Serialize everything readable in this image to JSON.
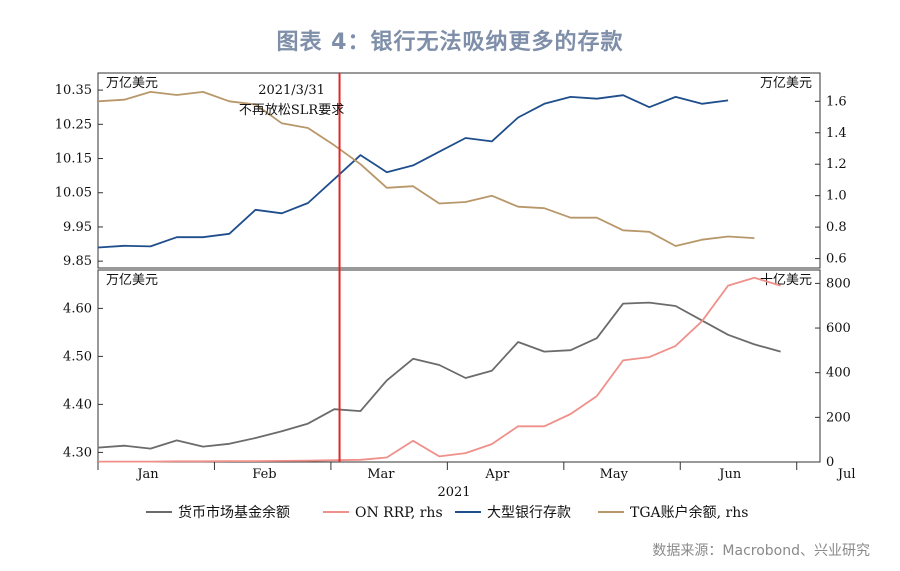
{
  "title": "图表 4：银行无法吸纳更多的存款",
  "source": "数据来源：Macrobond、兴业研究",
  "colors": {
    "mmf": "#6b6b6b",
    "onrrp": "#f0908a",
    "bank": "#1f4e8c",
    "tga": "#b8976a",
    "vline": "#e0282a",
    "axis": "#333333"
  },
  "chart_data": [
    {
      "type": "line",
      "panel": "top",
      "annotation": {
        "x": 9.2,
        "lines": [
          "2021/3/31",
          "不再放松SLR要求"
        ]
      },
      "left_unit": "万亿美元",
      "right_unit": "万亿美元",
      "ylim_left": [
        9.83,
        10.4
      ],
      "yticks_left": [
        "10.35",
        "10.25",
        "10.15",
        "10.05",
        "9.95",
        "9.85"
      ],
      "ylim_right": [
        0.54,
        1.78
      ],
      "yticks_right": [
        "1.6",
        "1.4",
        "1.2",
        "1.0",
        "0.8",
        "0.6"
      ],
      "series": [
        {
          "name": "大型银行存款",
          "axis": "left",
          "color_key": "bank",
          "x": [
            0,
            1,
            2,
            3,
            4,
            5,
            6,
            7,
            8,
            9,
            10,
            11,
            12,
            13,
            14,
            15,
            16,
            17,
            18,
            19,
            20,
            21,
            22,
            23,
            24
          ],
          "y": [
            9.89,
            9.895,
            9.893,
            9.92,
            9.92,
            9.93,
            10.0,
            9.99,
            10.02,
            10.09,
            10.16,
            10.11,
            10.13,
            10.17,
            10.21,
            10.2,
            10.27,
            10.31,
            10.33,
            10.325,
            10.335,
            10.3,
            10.33,
            10.31,
            10.32
          ]
        },
        {
          "name": "TGA账户余额，rhs",
          "axis": "right",
          "color_key": "tga",
          "x": [
            0,
            1,
            2,
            3,
            4,
            5,
            6,
            7,
            8,
            9,
            10,
            11,
            12,
            13,
            14,
            15,
            16,
            17,
            18,
            19,
            20,
            21,
            22,
            23,
            24,
            25
          ],
          "y": [
            1.6,
            1.61,
            1.66,
            1.64,
            1.66,
            1.6,
            1.58,
            1.46,
            1.43,
            1.32,
            1.2,
            1.05,
            1.06,
            0.95,
            0.96,
            1.0,
            0.93,
            0.92,
            0.86,
            0.86,
            0.78,
            0.77,
            0.68,
            0.72,
            0.74,
            0.73
          ]
        }
      ]
    },
    {
      "type": "line",
      "panel": "bottom",
      "left_unit": "万亿美元",
      "right_unit": "十亿美元",
      "xlabel": "2021",
      "x_ticks": [
        "Jan",
        "Feb",
        "Mar",
        "Apr",
        "May",
        "Jun",
        "Jul"
      ],
      "ylim_left": [
        4.28,
        4.68
      ],
      "yticks_left": [
        "4.60",
        "4.50",
        "4.40",
        "4.30"
      ],
      "ylim_right": [
        0,
        860
      ],
      "yticks_right": [
        "800",
        "600",
        "400",
        "200",
        "0"
      ],
      "series": [
        {
          "name": "货币市场基金余额",
          "axis": "left",
          "color_key": "mmf",
          "x": [
            0,
            1,
            2,
            3,
            4,
            5,
            6,
            7,
            8,
            9,
            10,
            11,
            12,
            13,
            14,
            15,
            16,
            17,
            18,
            19,
            20,
            21,
            22,
            23,
            24,
            25,
            26
          ],
          "y": [
            4.31,
            4.314,
            4.308,
            4.325,
            4.312,
            4.318,
            4.33,
            4.344,
            4.36,
            4.39,
            4.386,
            4.45,
            4.495,
            4.482,
            4.455,
            4.47,
            4.53,
            4.51,
            4.513,
            4.538,
            4.61,
            4.612,
            4.605,
            4.575,
            4.545,
            4.525,
            4.51
          ]
        },
        {
          "name": "ON RRP, rhs",
          "axis": "right",
          "color_key": "onrrp",
          "x": [
            0,
            1,
            2,
            3,
            4,
            5,
            6,
            7,
            8,
            9,
            10,
            11,
            12,
            13,
            14,
            15,
            16,
            17,
            18,
            19,
            20,
            21,
            22,
            23,
            24,
            25,
            26
          ],
          "y": [
            2,
            2,
            2,
            3,
            3,
            4,
            4,
            5,
            6,
            8,
            10,
            20,
            95,
            25,
            40,
            80,
            160,
            160,
            215,
            295,
            455,
            470,
            520,
            630,
            790,
            825,
            790
          ]
        }
      ]
    }
  ],
  "legend": [
    {
      "label": "货币市场基金余额",
      "color_key": "mmf"
    },
    {
      "label": "ON RRP, rhs",
      "color_key": "onrrp"
    },
    {
      "label": "大型银行存款",
      "color_key": "bank"
    },
    {
      "label": "TGA账户余额, rhs",
      "color_key": "tga"
    }
  ]
}
